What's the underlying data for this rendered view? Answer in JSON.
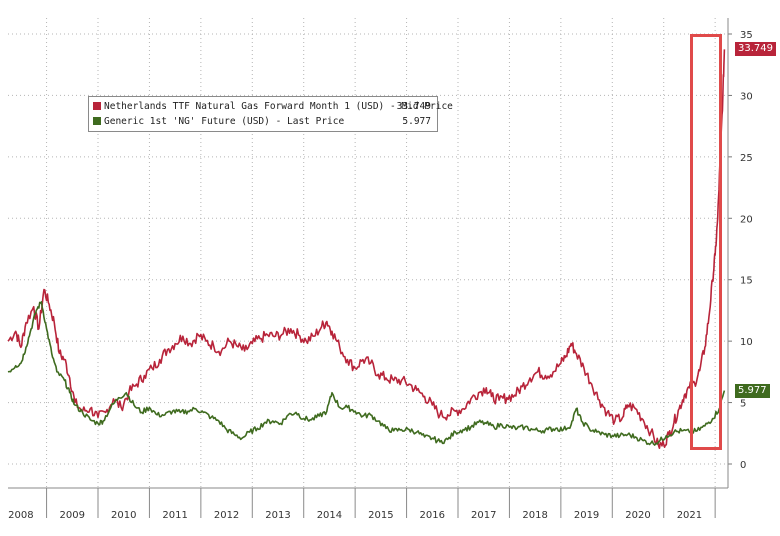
{
  "chart_data": {
    "type": "line",
    "title": "",
    "xlabel": "",
    "ylabel": "",
    "ylim": [
      -2,
      35
    ],
    "y_ticks": [
      0,
      5,
      10,
      15,
      20,
      25,
      30,
      35
    ],
    "x_tick_labels": [
      "2008",
      "2009",
      "2010",
      "2011",
      "2012",
      "2013",
      "2014",
      "2015",
      "2016",
      "2017",
      "2018",
      "2019",
      "2020",
      "2021"
    ],
    "xlim": [
      2007.75,
      2021.75
    ],
    "grid": true,
    "legend_position": "top-left",
    "series": [
      {
        "name": "Netherlands TTF Natural Gas Forward Month 1 (USD) - Mid Price",
        "legend_value": "33.749",
        "last_value_label": "33.749",
        "color": "#b8243a",
        "points": [
          [
            2007.75,
            10.0
          ],
          [
            2007.9,
            10.8
          ],
          [
            2008.0,
            9.5
          ],
          [
            2008.1,
            11.5
          ],
          [
            2008.25,
            12.8
          ],
          [
            2008.35,
            11.0
          ],
          [
            2008.45,
            14.2
          ],
          [
            2008.55,
            13.0
          ],
          [
            2008.65,
            11.5
          ],
          [
            2008.75,
            9.0
          ],
          [
            2008.85,
            8.5
          ],
          [
            2008.95,
            7.0
          ],
          [
            2009.05,
            5.0
          ],
          [
            2009.2,
            4.3
          ],
          [
            2009.35,
            4.5
          ],
          [
            2009.5,
            3.8
          ],
          [
            2009.65,
            4.2
          ],
          [
            2009.8,
            5.3
          ],
          [
            2009.95,
            4.6
          ],
          [
            2010.1,
            5.8
          ],
          [
            2010.25,
            6.5
          ],
          [
            2010.4,
            7.2
          ],
          [
            2010.55,
            7.8
          ],
          [
            2010.7,
            8.5
          ],
          [
            2010.85,
            9.3
          ],
          [
            2011.0,
            9.8
          ],
          [
            2011.15,
            10.4
          ],
          [
            2011.3,
            9.8
          ],
          [
            2011.45,
            10.5
          ],
          [
            2011.6,
            10.0
          ],
          [
            2011.75,
            9.6
          ],
          [
            2011.9,
            9.2
          ],
          [
            2012.05,
            10.0
          ],
          [
            2012.2,
            9.6
          ],
          [
            2012.35,
            9.2
          ],
          [
            2012.5,
            9.8
          ],
          [
            2012.65,
            10.2
          ],
          [
            2012.8,
            10.5
          ],
          [
            2012.95,
            10.4
          ],
          [
            2013.1,
            10.6
          ],
          [
            2013.25,
            11.0
          ],
          [
            2013.4,
            10.5
          ],
          [
            2013.55,
            10.0
          ],
          [
            2013.7,
            10.4
          ],
          [
            2013.85,
            11.2
          ],
          [
            2013.95,
            11.6
          ],
          [
            2014.05,
            10.8
          ],
          [
            2014.2,
            9.5
          ],
          [
            2014.35,
            8.5
          ],
          [
            2014.5,
            7.8
          ],
          [
            2014.65,
            8.5
          ],
          [
            2014.8,
            8.2
          ],
          [
            2014.95,
            7.3
          ],
          [
            2015.1,
            7.0
          ],
          [
            2015.25,
            6.8
          ],
          [
            2015.4,
            6.8
          ],
          [
            2015.55,
            6.5
          ],
          [
            2015.7,
            6.0
          ],
          [
            2015.85,
            5.5
          ],
          [
            2016.0,
            4.8
          ],
          [
            2016.15,
            4.0
          ],
          [
            2016.3,
            4.0
          ],
          [
            2016.45,
            4.3
          ],
          [
            2016.6,
            4.5
          ],
          [
            2016.75,
            5.3
          ],
          [
            2016.9,
            5.8
          ],
          [
            2017.05,
            6.2
          ],
          [
            2017.15,
            5.5
          ],
          [
            2017.3,
            5.2
          ],
          [
            2017.45,
            5.4
          ],
          [
            2017.6,
            5.6
          ],
          [
            2017.75,
            6.3
          ],
          [
            2017.9,
            7.0
          ],
          [
            2018.05,
            7.5
          ],
          [
            2018.2,
            7.2
          ],
          [
            2018.35,
            7.5
          ],
          [
            2018.5,
            8.2
          ],
          [
            2018.6,
            8.8
          ],
          [
            2018.7,
            9.8
          ],
          [
            2018.8,
            9.0
          ],
          [
            2018.95,
            7.8
          ],
          [
            2019.1,
            6.5
          ],
          [
            2019.25,
            5.2
          ],
          [
            2019.4,
            4.2
          ],
          [
            2019.55,
            3.5
          ],
          [
            2019.7,
            3.8
          ],
          [
            2019.8,
            4.8
          ],
          [
            2019.95,
            4.5
          ],
          [
            2020.1,
            3.6
          ],
          [
            2020.25,
            2.6
          ],
          [
            2020.4,
            1.5
          ],
          [
            2020.5,
            1.6
          ],
          [
            2020.6,
            2.4
          ],
          [
            2020.7,
            3.4
          ],
          [
            2020.8,
            4.5
          ],
          [
            2020.9,
            5.6
          ],
          [
            2021.0,
            6.2
          ],
          [
            2021.1,
            6.6
          ],
          [
            2021.2,
            7.6
          ],
          [
            2021.3,
            9.5
          ],
          [
            2021.38,
            12.0
          ],
          [
            2021.45,
            15.0
          ],
          [
            2021.5,
            17.0
          ],
          [
            2021.55,
            20.0
          ],
          [
            2021.6,
            25.0
          ],
          [
            2021.65,
            30.0
          ],
          [
            2021.68,
            33.749
          ]
        ]
      },
      {
        "name": "Generic 1st 'NG' Future (USD) - Last Price",
        "legend_value": "5.977",
        "last_value_label": "5.977",
        "color": "#3f6b1f",
        "points": [
          [
            2007.75,
            7.5
          ],
          [
            2007.9,
            8.0
          ],
          [
            2008.0,
            8.2
          ],
          [
            2008.1,
            9.5
          ],
          [
            2008.2,
            11.0
          ],
          [
            2008.3,
            12.5
          ],
          [
            2008.4,
            13.2
          ],
          [
            2008.5,
            11.0
          ],
          [
            2008.6,
            9.0
          ],
          [
            2008.7,
            7.5
          ],
          [
            2008.85,
            6.8
          ],
          [
            2008.95,
            5.8
          ],
          [
            2009.05,
            4.8
          ],
          [
            2009.2,
            4.2
          ],
          [
            2009.35,
            3.6
          ],
          [
            2009.5,
            3.3
          ],
          [
            2009.6,
            3.5
          ],
          [
            2009.75,
            4.6
          ],
          [
            2009.9,
            5.4
          ],
          [
            2010.05,
            5.8
          ],
          [
            2010.2,
            4.8
          ],
          [
            2010.35,
            4.2
          ],
          [
            2010.5,
            4.6
          ],
          [
            2010.65,
            4.0
          ],
          [
            2010.8,
            4.0
          ],
          [
            2010.95,
            4.3
          ],
          [
            2011.1,
            4.2
          ],
          [
            2011.25,
            4.3
          ],
          [
            2011.4,
            4.5
          ],
          [
            2011.55,
            4.2
          ],
          [
            2011.7,
            3.8
          ],
          [
            2011.85,
            3.5
          ],
          [
            2012.0,
            2.8
          ],
          [
            2012.15,
            2.4
          ],
          [
            2012.3,
            2.1
          ],
          [
            2012.45,
            2.6
          ],
          [
            2012.6,
            2.9
          ],
          [
            2012.75,
            3.4
          ],
          [
            2012.9,
            3.5
          ],
          [
            2013.05,
            3.3
          ],
          [
            2013.2,
            4.0
          ],
          [
            2013.35,
            4.2
          ],
          [
            2013.5,
            3.7
          ],
          [
            2013.65,
            3.6
          ],
          [
            2013.8,
            3.9
          ],
          [
            2013.95,
            4.3
          ],
          [
            2014.05,
            5.8
          ],
          [
            2014.2,
            4.6
          ],
          [
            2014.35,
            4.6
          ],
          [
            2014.5,
            4.3
          ],
          [
            2014.65,
            3.9
          ],
          [
            2014.8,
            4.0
          ],
          [
            2014.95,
            3.5
          ],
          [
            2015.1,
            2.9
          ],
          [
            2015.25,
            2.7
          ],
          [
            2015.4,
            2.8
          ],
          [
            2015.55,
            2.8
          ],
          [
            2015.7,
            2.6
          ],
          [
            2015.85,
            2.2
          ],
          [
            2016.0,
            2.1
          ],
          [
            2016.15,
            1.8
          ],
          [
            2016.3,
            2.0
          ],
          [
            2016.45,
            2.6
          ],
          [
            2016.6,
            2.8
          ],
          [
            2016.75,
            3.0
          ],
          [
            2016.9,
            3.4
          ],
          [
            2017.05,
            3.3
          ],
          [
            2017.2,
            3.0
          ],
          [
            2017.35,
            3.2
          ],
          [
            2017.5,
            3.0
          ],
          [
            2017.65,
            2.9
          ],
          [
            2017.8,
            3.0
          ],
          [
            2017.95,
            2.8
          ],
          [
            2018.1,
            2.7
          ],
          [
            2018.25,
            2.8
          ],
          [
            2018.4,
            2.9
          ],
          [
            2018.55,
            2.8
          ],
          [
            2018.7,
            3.2
          ],
          [
            2018.8,
            4.5
          ],
          [
            2018.9,
            3.5
          ],
          [
            2019.05,
            2.9
          ],
          [
            2019.2,
            2.6
          ],
          [
            2019.35,
            2.4
          ],
          [
            2019.5,
            2.3
          ],
          [
            2019.65,
            2.3
          ],
          [
            2019.8,
            2.4
          ],
          [
            2019.95,
            2.2
          ],
          [
            2020.1,
            1.9
          ],
          [
            2020.25,
            1.7
          ],
          [
            2020.4,
            1.8
          ],
          [
            2020.55,
            2.3
          ],
          [
            2020.7,
            2.6
          ],
          [
            2020.85,
            2.7
          ],
          [
            2021.0,
            2.6
          ],
          [
            2021.15,
            2.7
          ],
          [
            2021.3,
            3.1
          ],
          [
            2021.45,
            3.7
          ],
          [
            2021.58,
            4.5
          ],
          [
            2021.68,
            5.977
          ]
        ]
      }
    ]
  }
}
